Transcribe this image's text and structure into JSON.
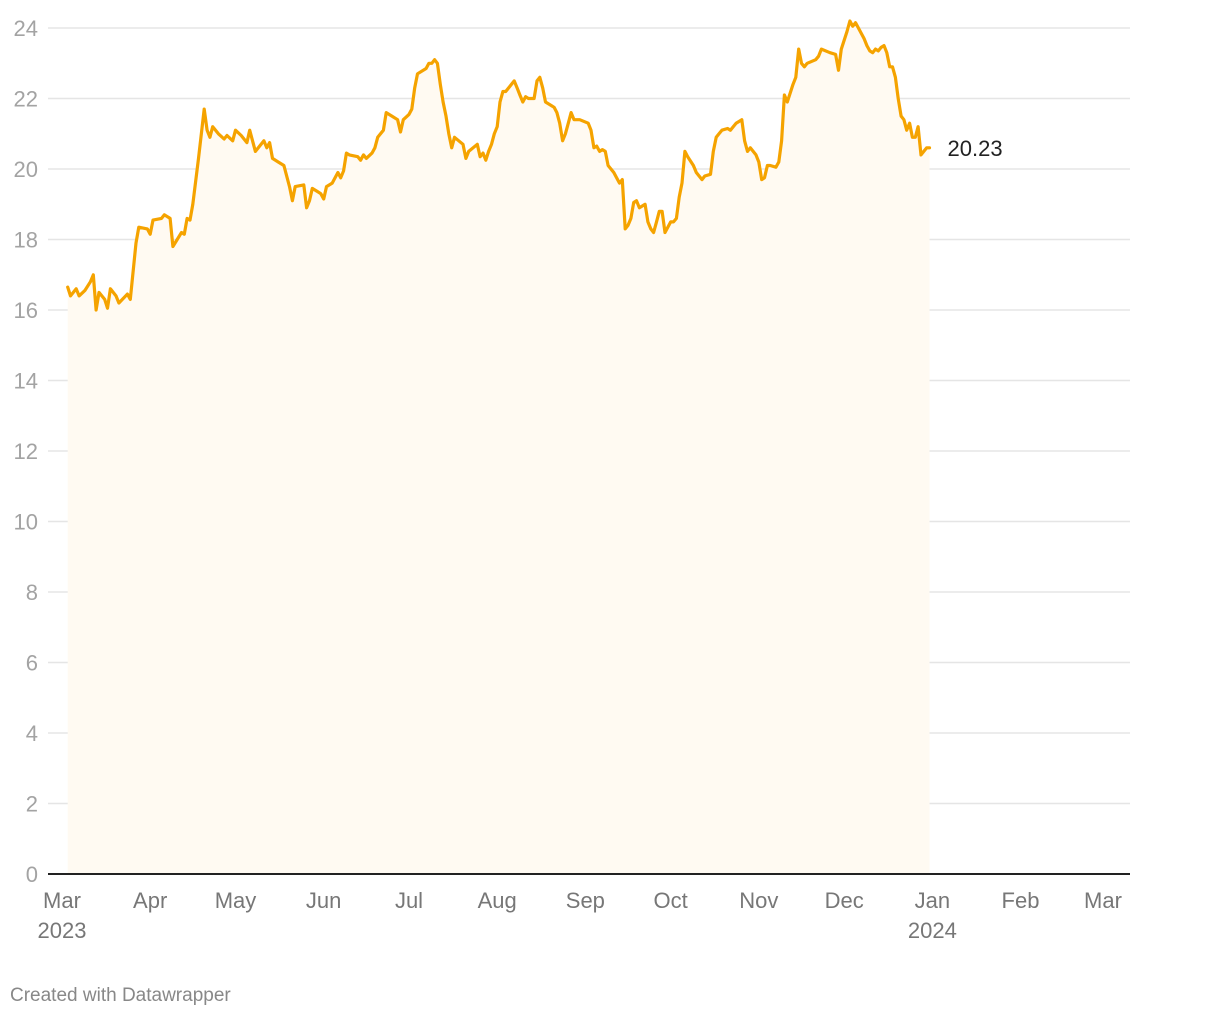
{
  "chart_data": {
    "type": "area",
    "title": "",
    "xlabel": "",
    "ylabel": "",
    "ylim": [
      0,
      24
    ],
    "y_ticks": [
      "0",
      "2",
      "4",
      "6",
      "8",
      "10",
      "12",
      "14",
      "16",
      "18",
      "20",
      "22",
      "24"
    ],
    "x_ticks": [
      {
        "date": "2023-03-01",
        "label": "Mar",
        "sub": "2023"
      },
      {
        "date": "2023-04-01",
        "label": "Apr",
        "sub": ""
      },
      {
        "date": "2023-05-01",
        "label": "May",
        "sub": ""
      },
      {
        "date": "2023-06-01",
        "label": "Jun",
        "sub": ""
      },
      {
        "date": "2023-07-01",
        "label": "Jul",
        "sub": ""
      },
      {
        "date": "2023-08-01",
        "label": "Aug",
        "sub": ""
      },
      {
        "date": "2023-09-01",
        "label": "Sep",
        "sub": ""
      },
      {
        "date": "2023-10-01",
        "label": "Oct",
        "sub": ""
      },
      {
        "date": "2023-11-01",
        "label": "Nov",
        "sub": ""
      },
      {
        "date": "2023-12-01",
        "label": "Dec",
        "sub": ""
      },
      {
        "date": "2024-01-01",
        "label": "Jan",
        "sub": "2024"
      },
      {
        "date": "2024-02-01",
        "label": "Feb",
        "sub": ""
      },
      {
        "date": "2024-03-01",
        "label": "Mar",
        "sub": ""
      }
    ],
    "grid": true,
    "line_color": "#f5a300",
    "area_color": "#fffaf2",
    "end_label": "20.23",
    "series": [
      {
        "points": [
          [
            "2023-03-03",
            16.65
          ],
          [
            "2023-03-04",
            16.4
          ],
          [
            "2023-03-06",
            16.6
          ],
          [
            "2023-03-07",
            16.4
          ],
          [
            "2023-03-09",
            16.55
          ],
          [
            "2023-03-11",
            16.8
          ],
          [
            "2023-03-12",
            17.0
          ],
          [
            "2023-03-13",
            16.0
          ],
          [
            "2023-03-14",
            16.5
          ],
          [
            "2023-03-16",
            16.3
          ],
          [
            "2023-03-17",
            16.05
          ],
          [
            "2023-03-18",
            16.6
          ],
          [
            "2023-03-20",
            16.4
          ],
          [
            "2023-03-21",
            16.2
          ],
          [
            "2023-03-24",
            16.45
          ],
          [
            "2023-03-25",
            16.3
          ],
          [
            "2023-03-27",
            17.9
          ],
          [
            "2023-03-28",
            18.35
          ],
          [
            "2023-03-31",
            18.3
          ],
          [
            "2023-04-01",
            18.15
          ],
          [
            "2023-04-02",
            18.55
          ],
          [
            "2023-04-05",
            18.6
          ],
          [
            "2023-04-06",
            18.7
          ],
          [
            "2023-04-08",
            18.6
          ],
          [
            "2023-04-09",
            17.8
          ],
          [
            "2023-04-12",
            18.2
          ],
          [
            "2023-04-13",
            18.15
          ],
          [
            "2023-04-14",
            18.6
          ],
          [
            "2023-04-15",
            18.55
          ],
          [
            "2023-04-16",
            19.0
          ],
          [
            "2023-04-18",
            20.3
          ],
          [
            "2023-04-20",
            21.7
          ],
          [
            "2023-04-21",
            21.1
          ],
          [
            "2023-04-22",
            20.9
          ],
          [
            "2023-04-23",
            21.2
          ],
          [
            "2023-04-25",
            21.0
          ],
          [
            "2023-04-27",
            20.85
          ],
          [
            "2023-04-28",
            20.95
          ],
          [
            "2023-04-30",
            20.8
          ],
          [
            "2023-05-01",
            21.1
          ],
          [
            "2023-05-03",
            20.95
          ],
          [
            "2023-05-05",
            20.75
          ],
          [
            "2023-05-06",
            21.1
          ],
          [
            "2023-05-08",
            20.5
          ],
          [
            "2023-05-09",
            20.6
          ],
          [
            "2023-05-11",
            20.8
          ],
          [
            "2023-05-12",
            20.6
          ],
          [
            "2023-05-13",
            20.75
          ],
          [
            "2023-05-14",
            20.3
          ],
          [
            "2023-05-16",
            20.2
          ],
          [
            "2023-05-18",
            20.1
          ],
          [
            "2023-05-20",
            19.5
          ],
          [
            "2023-05-21",
            19.1
          ],
          [
            "2023-05-22",
            19.5
          ],
          [
            "2023-05-25",
            19.55
          ],
          [
            "2023-05-26",
            18.9
          ],
          [
            "2023-05-27",
            19.1
          ],
          [
            "2023-05-28",
            19.45
          ],
          [
            "2023-05-30",
            19.35
          ],
          [
            "2023-05-31",
            19.3
          ],
          [
            "2023-06-01",
            19.15
          ],
          [
            "2023-06-02",
            19.5
          ],
          [
            "2023-06-04",
            19.6
          ],
          [
            "2023-06-06",
            19.9
          ],
          [
            "2023-06-07",
            19.75
          ],
          [
            "2023-06-08",
            19.95
          ],
          [
            "2023-06-09",
            20.45
          ],
          [
            "2023-06-10",
            20.4
          ],
          [
            "2023-06-13",
            20.35
          ],
          [
            "2023-06-14",
            20.25
          ],
          [
            "2023-06-15",
            20.4
          ],
          [
            "2023-06-16",
            20.3
          ],
          [
            "2023-06-18",
            20.45
          ],
          [
            "2023-06-19",
            20.6
          ],
          [
            "2023-06-20",
            20.9
          ],
          [
            "2023-06-22",
            21.1
          ],
          [
            "2023-06-23",
            21.6
          ],
          [
            "2023-06-25",
            21.5
          ],
          [
            "2023-06-27",
            21.4
          ],
          [
            "2023-06-28",
            21.05
          ],
          [
            "2023-06-29",
            21.4
          ],
          [
            "2023-07-01",
            21.55
          ],
          [
            "2023-07-02",
            21.7
          ],
          [
            "2023-07-03",
            22.3
          ],
          [
            "2023-07-04",
            22.7
          ],
          [
            "2023-07-07",
            22.85
          ],
          [
            "2023-07-08",
            23.0
          ],
          [
            "2023-07-09",
            23.0
          ],
          [
            "2023-07-10",
            23.1
          ],
          [
            "2023-07-11",
            23.0
          ],
          [
            "2023-07-12",
            22.4
          ],
          [
            "2023-07-13",
            21.9
          ],
          [
            "2023-07-14",
            21.5
          ],
          [
            "2023-07-15",
            21.0
          ],
          [
            "2023-07-16",
            20.6
          ],
          [
            "2023-07-17",
            20.9
          ],
          [
            "2023-07-20",
            20.7
          ],
          [
            "2023-07-21",
            20.3
          ],
          [
            "2023-07-22",
            20.5
          ],
          [
            "2023-07-25",
            20.7
          ],
          [
            "2023-07-26",
            20.35
          ],
          [
            "2023-07-27",
            20.45
          ],
          [
            "2023-07-28",
            20.25
          ],
          [
            "2023-07-29",
            20.5
          ],
          [
            "2023-07-30",
            20.7
          ],
          [
            "2023-07-31",
            21.0
          ],
          [
            "2023-08-01",
            21.2
          ],
          [
            "2023-08-02",
            21.9
          ],
          [
            "2023-08-03",
            22.2
          ],
          [
            "2023-08-04",
            22.2
          ],
          [
            "2023-08-06",
            22.4
          ],
          [
            "2023-08-07",
            22.5
          ],
          [
            "2023-08-08",
            22.3
          ],
          [
            "2023-08-09",
            22.1
          ],
          [
            "2023-08-10",
            21.9
          ],
          [
            "2023-08-11",
            22.05
          ],
          [
            "2023-08-12",
            22.0
          ],
          [
            "2023-08-14",
            22.0
          ],
          [
            "2023-08-15",
            22.5
          ],
          [
            "2023-08-16",
            22.6
          ],
          [
            "2023-08-17",
            22.3
          ],
          [
            "2023-08-18",
            21.9
          ],
          [
            "2023-08-20",
            21.8
          ],
          [
            "2023-08-21",
            21.75
          ],
          [
            "2023-08-22",
            21.6
          ],
          [
            "2023-08-23",
            21.3
          ],
          [
            "2023-08-24",
            20.8
          ],
          [
            "2023-08-25",
            21.0
          ],
          [
            "2023-08-26",
            21.3
          ],
          [
            "2023-08-27",
            21.6
          ],
          [
            "2023-08-28",
            21.4
          ],
          [
            "2023-08-30",
            21.4
          ],
          [
            "2023-09-02",
            21.3
          ],
          [
            "2023-09-03",
            21.1
          ],
          [
            "2023-09-04",
            20.6
          ],
          [
            "2023-09-05",
            20.65
          ],
          [
            "2023-09-06",
            20.5
          ],
          [
            "2023-09-07",
            20.55
          ],
          [
            "2023-09-08",
            20.5
          ],
          [
            "2023-09-09",
            20.1
          ],
          [
            "2023-09-11",
            19.9
          ],
          [
            "2023-09-12",
            19.75
          ],
          [
            "2023-09-13",
            19.6
          ],
          [
            "2023-09-14",
            19.7
          ],
          [
            "2023-09-15",
            18.3
          ],
          [
            "2023-09-16",
            18.4
          ],
          [
            "2023-09-17",
            18.6
          ],
          [
            "2023-09-18",
            19.05
          ],
          [
            "2023-09-19",
            19.1
          ],
          [
            "2023-09-20",
            18.9
          ],
          [
            "2023-09-22",
            19.0
          ],
          [
            "2023-09-23",
            18.5
          ],
          [
            "2023-09-24",
            18.3
          ],
          [
            "2023-09-25",
            18.2
          ],
          [
            "2023-09-26",
            18.5
          ],
          [
            "2023-09-27",
            18.8
          ],
          [
            "2023-09-28",
            18.8
          ],
          [
            "2023-09-29",
            18.2
          ],
          [
            "2023-10-01",
            18.5
          ],
          [
            "2023-10-02",
            18.5
          ],
          [
            "2023-10-03",
            18.6
          ],
          [
            "2023-10-04",
            19.2
          ],
          [
            "2023-10-05",
            19.6
          ],
          [
            "2023-10-06",
            20.5
          ],
          [
            "2023-10-07",
            20.35
          ],
          [
            "2023-10-09",
            20.1
          ],
          [
            "2023-10-10",
            19.9
          ],
          [
            "2023-10-12",
            19.7
          ],
          [
            "2023-10-13",
            19.8
          ],
          [
            "2023-10-15",
            19.85
          ],
          [
            "2023-10-16",
            20.5
          ],
          [
            "2023-10-17",
            20.9
          ],
          [
            "2023-10-18",
            21.0
          ],
          [
            "2023-10-19",
            21.1
          ],
          [
            "2023-10-21",
            21.15
          ],
          [
            "2023-10-22",
            21.1
          ],
          [
            "2023-10-24",
            21.3
          ],
          [
            "2023-10-26",
            21.4
          ],
          [
            "2023-10-27",
            20.8
          ],
          [
            "2023-10-28",
            20.5
          ],
          [
            "2023-10-29",
            20.6
          ],
          [
            "2023-10-31",
            20.4
          ],
          [
            "2023-11-01",
            20.2
          ],
          [
            "2023-11-02",
            19.7
          ],
          [
            "2023-11-03",
            19.75
          ],
          [
            "2023-11-04",
            20.1
          ],
          [
            "2023-11-05",
            20.1
          ],
          [
            "2023-11-07",
            20.05
          ],
          [
            "2023-11-08",
            20.2
          ],
          [
            "2023-11-09",
            20.8
          ],
          [
            "2023-11-10",
            22.1
          ],
          [
            "2023-11-11",
            21.9
          ],
          [
            "2023-11-13",
            22.4
          ],
          [
            "2023-11-14",
            22.6
          ],
          [
            "2023-11-15",
            23.4
          ],
          [
            "2023-11-16",
            23.0
          ],
          [
            "2023-11-17",
            22.9
          ],
          [
            "2023-11-18",
            23.0
          ],
          [
            "2023-11-21",
            23.1
          ],
          [
            "2023-11-22",
            23.2
          ],
          [
            "2023-11-23",
            23.4
          ],
          [
            "2023-11-26",
            23.3
          ],
          [
            "2023-11-28",
            23.25
          ],
          [
            "2023-11-29",
            22.8
          ],
          [
            "2023-11-30",
            23.4
          ],
          [
            "2023-12-02",
            23.9
          ],
          [
            "2023-12-03",
            24.2
          ],
          [
            "2023-12-04",
            24.05
          ],
          [
            "2023-12-05",
            24.15
          ],
          [
            "2023-12-06",
            24.0
          ],
          [
            "2023-12-08",
            23.7
          ],
          [
            "2023-12-09",
            23.5
          ],
          [
            "2023-12-10",
            23.35
          ],
          [
            "2023-12-11",
            23.3
          ],
          [
            "2023-12-12",
            23.4
          ],
          [
            "2023-12-13",
            23.35
          ],
          [
            "2023-12-14",
            23.45
          ],
          [
            "2023-12-15",
            23.5
          ],
          [
            "2023-12-16",
            23.3
          ],
          [
            "2023-12-17",
            22.9
          ],
          [
            "2023-12-18",
            22.9
          ],
          [
            "2023-12-19",
            22.6
          ],
          [
            "2023-12-20",
            22.0
          ],
          [
            "2023-12-21",
            21.5
          ],
          [
            "2023-12-22",
            21.4
          ],
          [
            "2023-12-23",
            21.1
          ],
          [
            "2023-12-24",
            21.3
          ],
          [
            "2023-12-25",
            20.9
          ],
          [
            "2023-12-26",
            20.9
          ],
          [
            "2023-12-27",
            21.2
          ],
          [
            "2023-12-28",
            20.4
          ],
          [
            "2023-12-29",
            20.5
          ],
          [
            "2023-12-30",
            20.6
          ],
          [
            "2023-12-31",
            20.6
          ]
        ]
      }
    ]
  },
  "credit": "Created with Datawrapper"
}
